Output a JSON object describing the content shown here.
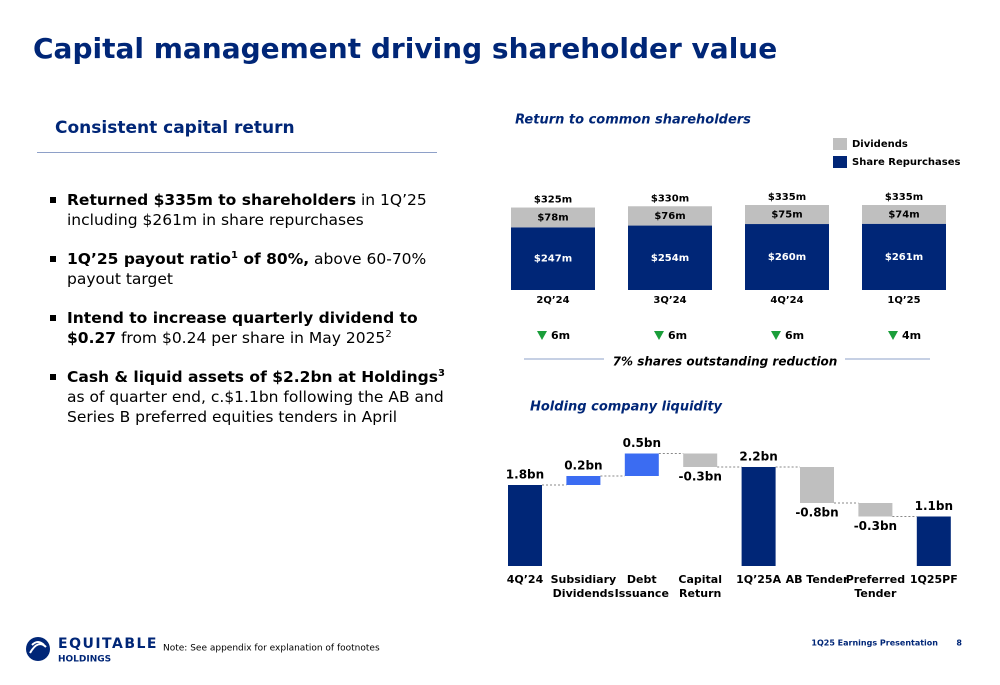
{
  "title": "Capital management driving shareholder value",
  "left": {
    "heading": "Consistent capital return",
    "bullets": [
      [
        {
          "text": "Returned $335m to shareholders",
          "style": "b"
        },
        {
          "text": " in 1Q’25 including $261m in share repurchases",
          "style": "n"
        }
      ],
      [
        {
          "text": "1Q’25 payout ratio",
          "style": "b"
        },
        {
          "text": "1",
          "style": "bsup"
        },
        {
          "text": " of 80%,",
          "style": "b"
        },
        {
          "text": " above 60-70% payout target",
          "style": "n"
        }
      ],
      [
        {
          "text": "Intend to increase quarterly dividend to $0.27",
          "style": "b"
        },
        {
          "text": " from $0.24 per share in May 2025",
          "style": "n"
        },
        {
          "text": "2",
          "style": "sup"
        }
      ],
      [
        {
          "text": "Cash & liquid assets of $2.2bn at Holdings",
          "style": "b"
        },
        {
          "text": "3",
          "style": "bsup"
        },
        {
          "text": " as of quarter end, c.$1.1bn following the AB and Series B preferred equities tenders in April",
          "style": "n"
        }
      ]
    ]
  },
  "chart_data": [
    {
      "type": "stacked_bar",
      "title": "Return to common shareholders",
      "categories": [
        "2Q’24",
        "3Q’24",
        "4Q’24",
        "1Q’25"
      ],
      "series": [
        {
          "name": "Share Repurchases",
          "color": "#002677",
          "values": [
            247,
            254,
            260,
            261
          ],
          "value_labels": [
            "$247m",
            "$254m",
            "$260m",
            "$261m"
          ]
        },
        {
          "name": "Dividends",
          "color": "#bfbfbf",
          "values": [
            78,
            76,
            75,
            74
          ],
          "value_labels": [
            "$78m",
            "$76m",
            "$75m",
            "$74m"
          ]
        }
      ],
      "totals": {
        "values": [
          325,
          330,
          335,
          335
        ],
        "value_labels": [
          "$325m",
          "$330m",
          "$335m",
          "$335m"
        ]
      },
      "reductions": {
        "values": [
          6,
          6,
          6,
          4
        ],
        "value_labels": [
          "6m",
          "6m",
          "6m",
          "4m"
        ],
        "color": "#1a9e3a"
      },
      "note": "7% shares outstanding reduction"
    },
    {
      "type": "waterfall",
      "title": "Holding company liquidity",
      "categories": [
        "4Q’24",
        "Subsidiary\nDividends",
        "Debt\nIssuance",
        "Capital\nReturn",
        "1Q’25A",
        "AB Tender",
        "Preferred\nTender",
        "1Q25PF"
      ],
      "values": [
        1.8,
        0.2,
        0.5,
        -0.3,
        2.2,
        -0.8,
        -0.3,
        1.1
      ],
      "value_labels": [
        "1.8bn",
        "0.2bn",
        "0.5bn",
        "-0.3bn",
        "2.2bn",
        "-0.8bn",
        "-0.3bn",
        "1.1bn"
      ],
      "kinds": [
        "total",
        "increase",
        "increase",
        "decrease",
        "total",
        "decrease",
        "decrease",
        "total"
      ],
      "colors": {
        "total": "#002677",
        "increase": "#3b6cf2",
        "decrease": "#bfbfbf"
      }
    }
  ],
  "footer": {
    "logo": [
      "EQUITABLE",
      "HOLDINGS"
    ],
    "note": "Note: See appendix for explanation of footnotes",
    "presentation": "1Q25 Earnings Presentation",
    "page": "8"
  }
}
